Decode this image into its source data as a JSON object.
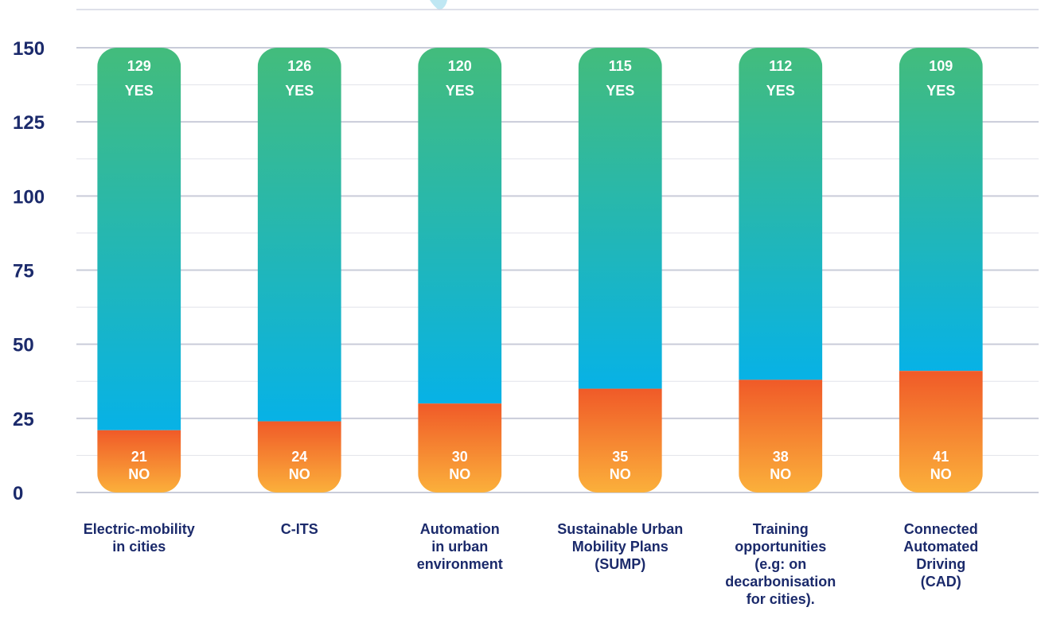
{
  "chart_data": {
    "type": "bar",
    "stacked": true,
    "categories": [
      "Electric-mobility\nin cities",
      "C-ITS",
      "Automation\nin urban\nenvironment",
      "Sustainable Urban\nMobility Plans\n(SUMP)",
      "Training\nopportunities\n(e.g: on\ndecarbonisation\nfor cities).",
      "Connected\nAutomated\nDriving\n(CAD)"
    ],
    "series": [
      {
        "name": "YES",
        "values": [
          129,
          126,
          120,
          115,
          112,
          109
        ]
      },
      {
        "name": "NO",
        "values": [
          21,
          24,
          30,
          35,
          38,
          41
        ]
      }
    ],
    "yticks": [
      0,
      25,
      50,
      75,
      100,
      125,
      150
    ],
    "ylim": [
      0,
      150
    ],
    "grid": true,
    "colors": {
      "yes_top": "#43bc7c",
      "yes_bottom": "#07b2e6",
      "no_top": "#f05a28",
      "no_bottom": "#fbb03b",
      "axis_text": "#1b2a6b",
      "grid": "#c9ccd9"
    }
  }
}
